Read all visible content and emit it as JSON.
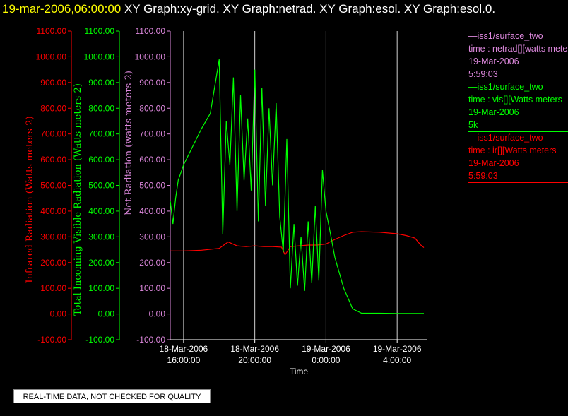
{
  "header": {
    "timestamp": "19-mar-2006,06:00:00",
    "graphs": "XY Graph:xy-grid.  XY Graph:netrad.  XY Graph:esol.  XY Graph:esol.0."
  },
  "colors": {
    "ir": "#ff0000",
    "vis": "#00ff00",
    "net": "#dd88dd",
    "grid": "#d0d0d0",
    "axis": "#ffffff"
  },
  "legend": [
    {
      "line1": "—iss1/surface_two",
      "line2": "time : netrad[][watts meters",
      "line3": "19-Mar-2006",
      "line4": "5:59:03",
      "color": "#dd88dd"
    },
    {
      "line1": "—iss1/surface_two",
      "line2": "time : vis[][Watts meters",
      "line3": "19-Mar-2006",
      "line4": "5k",
      "color": "#00ff00"
    },
    {
      "line1": "—iss1/surface_two",
      "line2": "time : ir[][Watts meters",
      "line3": "19-Mar-2006",
      "line4": "5:59:03",
      "color": "#ff0000"
    }
  ],
  "quality_note": "REAL-TIME DATA, NOT CHECKED FOR QUALITY",
  "chart_data": {
    "type": "line",
    "xlabel": "Time",
    "x_range_hours_from_18mar_1600": [
      -0.75,
      13.7
    ],
    "ylim": [
      -100,
      1100
    ],
    "y_ticks": [
      "1100.00",
      "1000.00",
      "900.00",
      "800.00",
      "700.00",
      "600.00",
      "500.00",
      "400.00",
      "300.00",
      "200.00",
      "100.00",
      "0.00",
      "-100.00"
    ],
    "x_ticks": [
      {
        "t": 0,
        "date": "18-Mar-2006",
        "time": "16:00:00"
      },
      {
        "t": 4,
        "date": "18-Mar-2006",
        "time": "20:00:00"
      },
      {
        "t": 8,
        "date": "19-Mar-2006",
        "time": "0:00:00"
      },
      {
        "t": 12,
        "date": "19-Mar-2006",
        "time": "4:00:00"
      }
    ],
    "axes": [
      {
        "name": "ir",
        "label": "Infrared Radiation (Watts meters-2)",
        "color": "#ff0000"
      },
      {
        "name": "vis",
        "label": "Total Incoming Visible Radiation (Watts meters-2)",
        "color": "#00ff00"
      },
      {
        "name": "net",
        "label": "Net Radiation (watts meters-2)",
        "color": "#dd88dd"
      }
    ],
    "series": [
      {
        "name": "ir",
        "color": "#ff0000",
        "t": [
          -0.75,
          0,
          1,
          2,
          2.5,
          3,
          3.5,
          4,
          4.5,
          5,
          5.5,
          5.7,
          6,
          6.5,
          7,
          7.5,
          8,
          8.5,
          9,
          9.5,
          10,
          11,
          12,
          12.5,
          13,
          13.3,
          13.5
        ],
        "v": [
          245,
          245,
          248,
          255,
          280,
          265,
          262,
          265,
          262,
          262,
          260,
          230,
          262,
          265,
          268,
          268,
          272,
          290,
          305,
          318,
          320,
          318,
          312,
          305,
          295,
          270,
          258
        ]
      },
      {
        "name": "vis",
        "color": "#00ff00",
        "t": [
          -0.75,
          -0.6,
          -0.45,
          -0.3,
          0,
          0.5,
          1,
          1.5,
          2,
          2.2,
          2.4,
          2.6,
          2.8,
          3.0,
          3.2,
          3.4,
          3.6,
          3.8,
          4.0,
          4.2,
          4.4,
          4.6,
          4.8,
          5.0,
          5.2,
          5.4,
          5.6,
          5.8,
          6.0,
          6.2,
          6.4,
          6.6,
          6.8,
          7.0,
          7.2,
          7.4,
          7.6,
          7.8,
          8.0,
          8.2,
          8.5,
          9,
          9.5,
          10,
          11,
          12,
          13,
          13.5
        ],
        "v": [
          440,
          350,
          450,
          520,
          580,
          650,
          720,
          780,
          990,
          310,
          750,
          580,
          920,
          400,
          850,
          520,
          760,
          480,
          950,
          360,
          880,
          420,
          800,
          500,
          820,
          380,
          240,
          680,
          100,
          350,
          110,
          300,
          90,
          360,
          120,
          420,
          130,
          560,
          400,
          330,
          220,
          100,
          20,
          3,
          3,
          2,
          2,
          2
        ]
      }
    ]
  }
}
